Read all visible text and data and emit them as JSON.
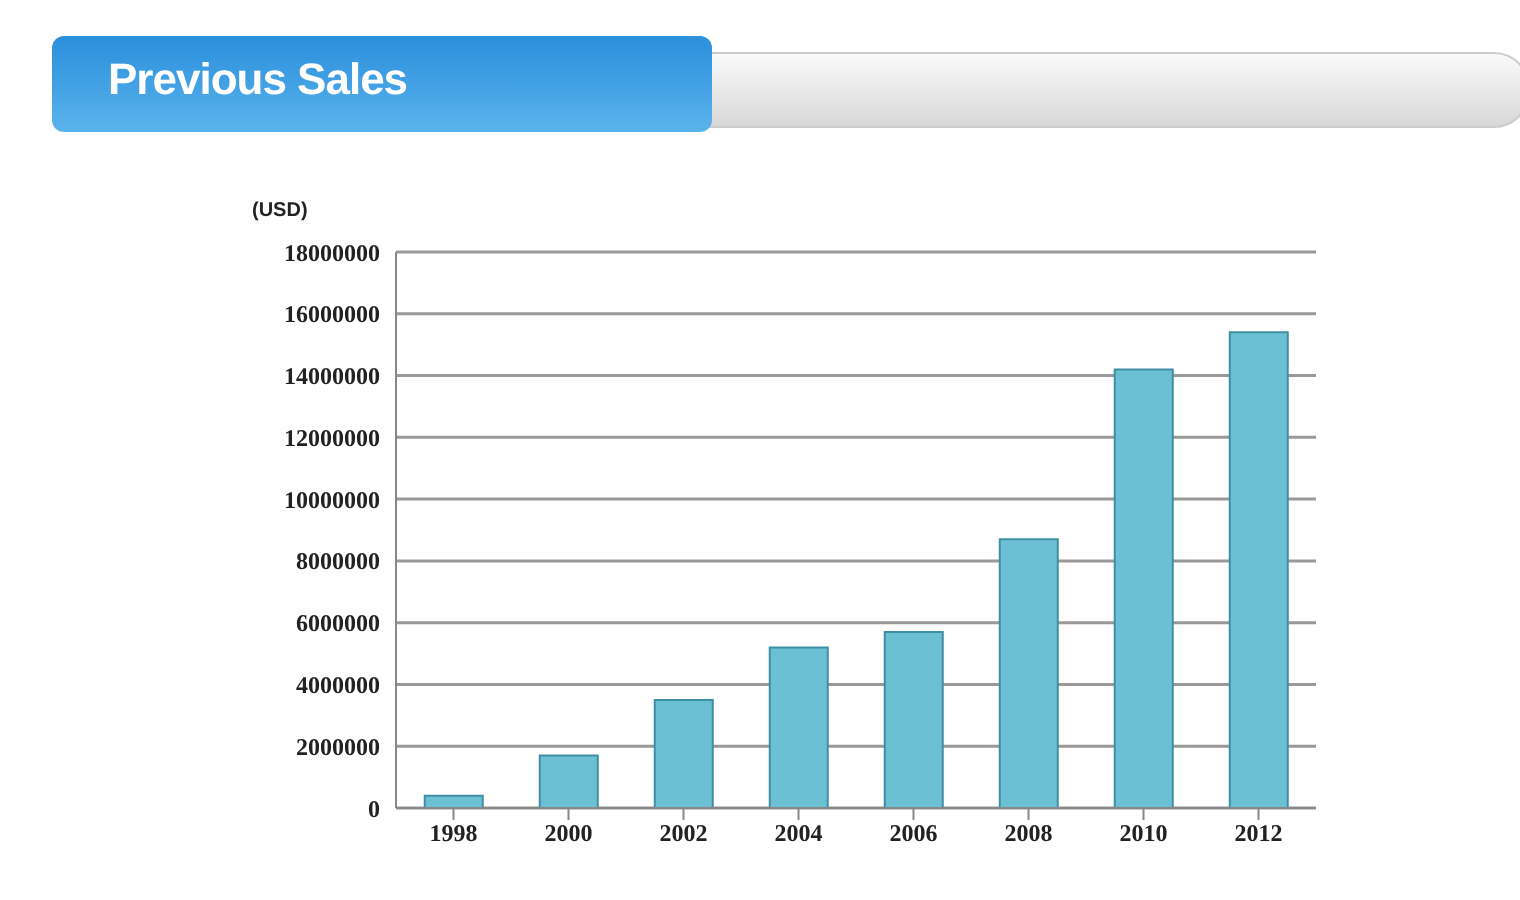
{
  "chart_data": {
    "type": "bar",
    "title": "Previous Sales",
    "ylabel": "(USD)",
    "categories": [
      "1998",
      "2000",
      "2002",
      "2004",
      "2006",
      "2008",
      "2010",
      "2012"
    ],
    "values": [
      400000,
      1700000,
      3500000,
      5200000,
      5700000,
      8700000,
      14200000,
      15400000
    ],
    "color": "#6cc0d4",
    "ylim": [
      0,
      18000000
    ],
    "yticks": [
      0,
      2000000,
      4000000,
      6000000,
      8000000,
      10000000,
      12000000,
      14000000,
      16000000,
      18000000
    ],
    "grid": "y"
  }
}
